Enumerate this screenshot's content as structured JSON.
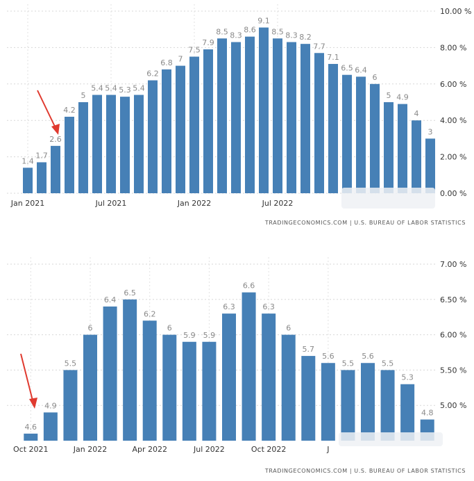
{
  "source": "TRADINGECONOMICS.COM  |  U.S. BUREAU OF LABOR STATISTICS",
  "colors": {
    "bar": "#4680b6",
    "arrow": "#e03a2f",
    "grid": "#d7d7d7"
  },
  "chart_data": [
    {
      "type": "bar",
      "grid": true,
      "ylim": [
        0,
        10
      ],
      "y_ticks": [
        "0.00 %",
        "2.00 %",
        "4.00 %",
        "6.00 %",
        "8.00 %",
        "10.00 %"
      ],
      "x_ticks": [
        "Jan 2021",
        "Jul 2021",
        "Jan 2022",
        "Jul 2022"
      ],
      "categories": [
        "Jan 2021",
        "Feb 2021",
        "Mar 2021",
        "Apr 2021",
        "May 2021",
        "Jun 2021",
        "Jul 2021",
        "Aug 2021",
        "Sep 2021",
        "Oct 2021",
        "Nov 2021",
        "Dec 2021",
        "Jan 2022",
        "Feb 2022",
        "Mar 2022",
        "Apr 2022",
        "May 2022",
        "Jun 2022",
        "Jul 2022",
        "Aug 2022",
        "Sep 2022",
        "Oct 2022",
        "Nov 2022",
        "Dec 2022",
        "Jan 2023",
        "Feb 2023",
        "Mar 2023",
        "Apr 2023",
        "May 2023",
        "Jun 2023"
      ],
      "values": [
        1.4,
        1.7,
        2.6,
        4.2,
        5,
        5.4,
        5.4,
        5.3,
        5.4,
        6.2,
        6.8,
        7,
        7.5,
        7.9,
        8.5,
        8.3,
        8.6,
        9.1,
        8.5,
        8.3,
        8.2,
        7.7,
        7.1,
        6.5,
        6.4,
        6,
        5,
        4.9,
        4,
        3
      ],
      "value_labels": [
        "1.4",
        "1.7",
        "2.6",
        "4.2",
        "5",
        "5.4",
        "5.4",
        "5.3",
        "5.4",
        "6.2",
        "6.8",
        "7",
        "7.5",
        "7.9",
        "8.5",
        "8.3",
        "8.6",
        "9.1",
        "8.5",
        "8.3",
        "8.2",
        "7.7",
        "7.1",
        "6.5",
        "6.4",
        "6",
        "5",
        "4.9",
        "4",
        "3"
      ],
      "annotation": {
        "type": "arrow",
        "points_to": "Mar 2021"
      }
    },
    {
      "type": "bar",
      "grid": true,
      "ylim": [
        4.5,
        7
      ],
      "y_ticks": [
        "5.00 %",
        "5.50 %",
        "6.00 %",
        "6.50 %",
        "7.00 %"
      ],
      "x_ticks": [
        "Oct 2021",
        "Jan 2022",
        "Apr 2022",
        "Jul 2022",
        "Oct 2022",
        "J"
      ],
      "categories": [
        "Oct 2021",
        "Nov 2021",
        "Dec 2021",
        "Jan 2022",
        "Feb 2022",
        "Mar 2022",
        "Apr 2022",
        "May 2022",
        "Jun 2022",
        "Jul 2022",
        "Aug 2022",
        "Sep 2022",
        "Oct 2022",
        "Nov 2022",
        "Dec 2022",
        "Jan 2023",
        "Feb 2023",
        "Mar 2023",
        "Apr 2023",
        "May 2023",
        "Jun 2023"
      ],
      "values": [
        4.6,
        4.9,
        5.5,
        6,
        6.4,
        6.5,
        6.2,
        6,
        5.9,
        5.9,
        6.3,
        6.6,
        6.3,
        6,
        5.7,
        5.6,
        5.5,
        5.6,
        5.5,
        5.3,
        4.8
      ],
      "value_labels": [
        "4.6",
        "4.9",
        "5.5",
        "6",
        "6.4",
        "6.5",
        "6.2",
        "6",
        "5.9",
        "5.9",
        "6.3",
        "6.6",
        "6.3",
        "6",
        "5.7",
        "5.6",
        "5.5",
        "5.6",
        "5.5",
        "5.3",
        "4.8"
      ],
      "annotation": {
        "type": "arrow",
        "points_to": "Oct 2021"
      }
    }
  ]
}
